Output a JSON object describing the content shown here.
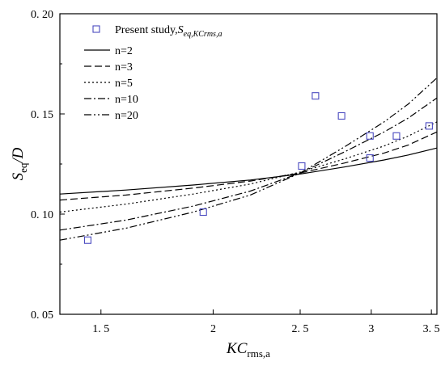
{
  "chart_data": {
    "type": "scatter",
    "xlabel": {
      "main": "KC",
      "sub": "rms,a"
    },
    "ylabel": {
      "main": "S",
      "sub": "eq",
      "tail": "/D"
    },
    "x_scale": "log",
    "xlim": [
      1.35,
      3.55
    ],
    "ylim": [
      0.05,
      0.2
    ],
    "x_ticks": [
      1.5,
      2,
      2.5,
      3,
      3.5
    ],
    "x_tick_labels": [
      "1. 5",
      "2",
      "2. 5",
      "3",
      "3. 5"
    ],
    "y_ticks": [
      0.05,
      0.1,
      0.15,
      0.2
    ],
    "y_tick_labels": [
      "0. 05",
      "0. 10",
      "0. 15",
      "0. 20"
    ],
    "grid": false,
    "legend_position": "top-left",
    "marker_series": {
      "name": "Present study,",
      "name_math": {
        "main": "S",
        "sub": "eq,KCrms,a"
      },
      "color": "#4a4ac0",
      "points": [
        {
          "x": 1.45,
          "y": 0.087
        },
        {
          "x": 1.95,
          "y": 0.101
        },
        {
          "x": 2.51,
          "y": 0.124
        },
        {
          "x": 2.6,
          "y": 0.159
        },
        {
          "x": 2.78,
          "y": 0.149
        },
        {
          "x": 2.99,
          "y": 0.139
        },
        {
          "x": 2.99,
          "y": 0.128
        },
        {
          "x": 3.2,
          "y": 0.139
        },
        {
          "x": 3.48,
          "y": 0.144
        }
      ]
    },
    "series": [
      {
        "name": "n=2",
        "dash": "",
        "points": [
          [
            1.35,
            0.11
          ],
          [
            1.6,
            0.112
          ],
          [
            1.9,
            0.1145
          ],
          [
            2.2,
            0.117
          ],
          [
            2.5,
            0.12
          ],
          [
            2.8,
            0.1235
          ],
          [
            3.1,
            0.127
          ],
          [
            3.3,
            0.1295
          ],
          [
            3.55,
            0.133
          ]
        ]
      },
      {
        "name": "n=3",
        "dash": "9,4",
        "points": [
          [
            1.35,
            0.107
          ],
          [
            1.6,
            0.1095
          ],
          [
            1.9,
            0.113
          ],
          [
            2.2,
            0.1165
          ],
          [
            2.5,
            0.1205
          ],
          [
            2.8,
            0.1255
          ],
          [
            3.1,
            0.1305
          ],
          [
            3.3,
            0.1345
          ],
          [
            3.55,
            0.141
          ]
        ]
      },
      {
        "name": "n=5",
        "dash": "2,3",
        "points": [
          [
            1.35,
            0.101
          ],
          [
            1.6,
            0.105
          ],
          [
            1.9,
            0.11
          ],
          [
            2.2,
            0.115
          ],
          [
            2.5,
            0.121
          ],
          [
            2.8,
            0.1275
          ],
          [
            3.1,
            0.134
          ],
          [
            3.3,
            0.139
          ],
          [
            3.55,
            0.146
          ]
        ]
      },
      {
        "name": "n=10",
        "dash": "9,3,2,3",
        "points": [
          [
            1.35,
            0.092
          ],
          [
            1.6,
            0.097
          ],
          [
            1.9,
            0.104
          ],
          [
            2.2,
            0.1115
          ],
          [
            2.5,
            0.1205
          ],
          [
            2.8,
            0.131
          ],
          [
            3.1,
            0.141
          ],
          [
            3.3,
            0.148
          ],
          [
            3.55,
            0.158
          ]
        ]
      },
      {
        "name": "n=20",
        "dash": "9,3,2,3,2,3",
        "points": [
          [
            1.35,
            0.087
          ],
          [
            1.6,
            0.093
          ],
          [
            1.9,
            0.101
          ],
          [
            2.2,
            0.1095
          ],
          [
            2.5,
            0.1205
          ],
          [
            2.8,
            0.1335
          ],
          [
            3.1,
            0.146
          ],
          [
            3.3,
            0.155
          ],
          [
            3.55,
            0.168
          ]
        ]
      }
    ]
  }
}
